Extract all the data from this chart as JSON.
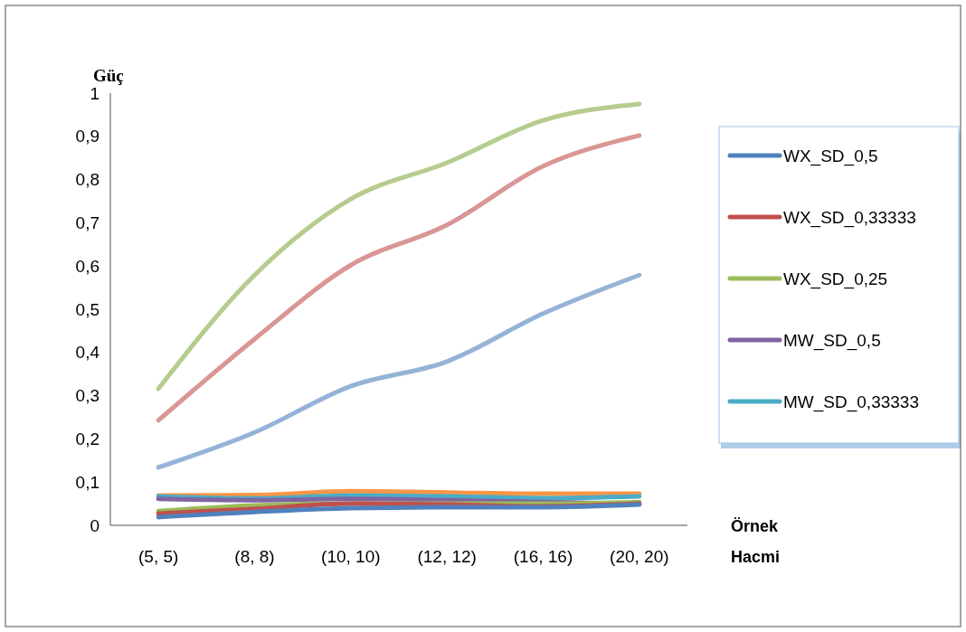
{
  "chart_data": {
    "type": "line",
    "xlabel": "Örnek Hacmi",
    "ylabel": "Güç",
    "categories": [
      "(5, 5)",
      "(8, 8)",
      "(10, 10)",
      "(12, 12)",
      "(16, 16)",
      "(20, 20)"
    ],
    "ylim": [
      0,
      1
    ],
    "yticks": [
      0,
      {
        "value": 0.1,
        "label": "0,1"
      },
      {
        "value": 0.2,
        "label": "0,2"
      },
      {
        "value": 0.3,
        "label": "0,3"
      },
      {
        "value": 0.4,
        "label": "0,4"
      },
      {
        "value": 0.5,
        "label": "0,5"
      },
      {
        "value": 0.6,
        "label": "0,6"
      },
      {
        "value": 0.7,
        "label": "0,7"
      },
      {
        "value": 0.8,
        "label": "0,8"
      },
      {
        "value": 0.9,
        "label": "0,9"
      },
      1
    ],
    "series": [
      {
        "color": "#95b3d7",
        "values": [
          0.134,
          0.215,
          0.322,
          0.379,
          0.49,
          0.579
        ]
      },
      {
        "color": "#d99694",
        "values": [
          0.243,
          0.431,
          0.602,
          0.695,
          0.831,
          0.902
        ]
      },
      {
        "color": "#b5cc8e",
        "values": [
          0.316,
          0.579,
          0.755,
          0.839,
          0.937,
          0.975
        ]
      },
      {
        "color": "#f79646",
        "values": [
          0.069,
          0.07,
          0.079,
          0.076,
          0.073,
          0.073
        ]
      },
      {
        "name": "MW_SD_0,33333",
        "color": "#4bacc6",
        "values": [
          0.067,
          0.062,
          0.069,
          0.067,
          0.063,
          0.067
        ]
      },
      {
        "name": "MW_SD_0,5",
        "color": "#8064a2",
        "values": [
          0.061,
          0.058,
          0.061,
          0.058,
          0.054,
          0.05
        ]
      },
      {
        "name": "WX_SD_0,25",
        "color": "#9bbb59",
        "values": [
          0.033,
          0.046,
          0.05,
          0.05,
          0.05,
          0.054
        ]
      },
      {
        "name": "WX_SD_0,33333",
        "color": "#c0504d",
        "values": [
          0.027,
          0.038,
          0.05,
          0.048,
          0.044,
          0.05
        ]
      },
      {
        "name": "WX_SD_0,5",
        "color": "#4f81bd",
        "values": [
          0.019,
          0.031,
          0.04,
          0.042,
          0.042,
          0.048
        ]
      }
    ],
    "legend": "right",
    "grid": false,
    "marker": "none",
    "line_style": "solid"
  }
}
